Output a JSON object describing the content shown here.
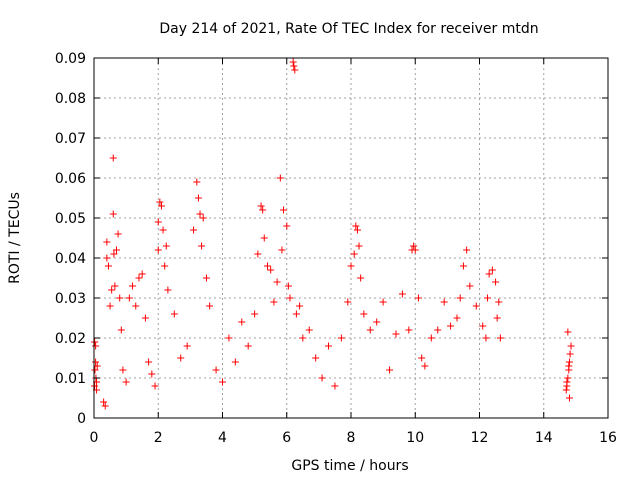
{
  "chart_data": {
    "type": "scatter",
    "title": "Day 214 of 2021, Rate Of TEC Index for receiver mtdn",
    "xlabel": "GPS time / hours",
    "ylabel": "ROTI / TECUs",
    "xlim": [
      0,
      16
    ],
    "ylim": [
      0,
      0.09
    ],
    "xticks": [
      0,
      2,
      4,
      6,
      8,
      10,
      12,
      14,
      16
    ],
    "xtick_labels": [
      "0",
      "2",
      "4",
      "6",
      "8",
      "10",
      "12",
      "14",
      "16"
    ],
    "yticks": [
      0,
      0.01,
      0.02,
      0.03,
      0.04,
      0.05,
      0.06,
      0.07,
      0.08,
      0.09
    ],
    "ytick_labels": [
      "0",
      "0.01",
      "0.02",
      "0.03",
      "0.04",
      "0.05",
      "0.06",
      "0.07",
      "0.08",
      "0.09"
    ],
    "grid": true,
    "marker": "+",
    "color": "#ff0000",
    "series": [
      {
        "name": "ROTI",
        "note": "representative subset of the dense point cloud; values read from the plot",
        "x": [
          0.02,
          0.03,
          0.05,
          0.06,
          0.08,
          0.1,
          0.02,
          0.05,
          0.08,
          0.3,
          0.35,
          0.4,
          0.4,
          0.45,
          0.5,
          0.55,
          0.6,
          0.6,
          0.62,
          0.65,
          0.7,
          0.75,
          0.8,
          0.85,
          0.9,
          1.0,
          1.1,
          1.2,
          1.3,
          1.4,
          1.5,
          1.6,
          1.7,
          1.8,
          1.9,
          2.0,
          2.0,
          2.05,
          2.1,
          2.15,
          2.2,
          2.25,
          2.3,
          2.5,
          2.7,
          2.9,
          3.1,
          3.2,
          3.25,
          3.3,
          3.35,
          3.4,
          3.5,
          3.6,
          3.8,
          4.0,
          4.2,
          4.4,
          4.6,
          4.8,
          5.0,
          5.1,
          5.2,
          5.25,
          5.3,
          5.4,
          5.5,
          5.6,
          5.7,
          5.8,
          5.85,
          5.9,
          6.0,
          6.05,
          6.1,
          6.2,
          6.22,
          6.25,
          6.3,
          6.4,
          6.5,
          6.7,
          6.9,
          7.1,
          7.3,
          7.5,
          7.7,
          7.9,
          8.0,
          8.1,
          8.15,
          8.2,
          8.25,
          8.3,
          8.4,
          8.6,
          8.8,
          9.0,
          9.2,
          9.4,
          9.6,
          9.8,
          9.9,
          9.95,
          10.0,
          10.1,
          10.2,
          10.3,
          10.5,
          10.7,
          10.9,
          11.1,
          11.3,
          11.4,
          11.5,
          11.6,
          11.7,
          11.9,
          12.1,
          12.2,
          12.25,
          12.3,
          12.4,
          12.5,
          12.55,
          12.6,
          12.65,
          14.7,
          14.72,
          14.75,
          14.78,
          14.8,
          14.82,
          14.85,
          14.75,
          14.8,
          14.72,
          14.78
        ],
        "y": [
          0.008,
          0.012,
          0.014,
          0.01,
          0.009,
          0.013,
          0.019,
          0.018,
          0.007,
          0.004,
          0.003,
          0.044,
          0.04,
          0.038,
          0.028,
          0.032,
          0.051,
          0.065,
          0.041,
          0.033,
          0.042,
          0.046,
          0.03,
          0.022,
          0.012,
          0.009,
          0.03,
          0.033,
          0.028,
          0.035,
          0.036,
          0.025,
          0.014,
          0.011,
          0.008,
          0.042,
          0.049,
          0.054,
          0.053,
          0.047,
          0.038,
          0.043,
          0.032,
          0.026,
          0.015,
          0.018,
          0.047,
          0.059,
          0.055,
          0.051,
          0.043,
          0.05,
          0.035,
          0.028,
          0.012,
          0.009,
          0.02,
          0.014,
          0.024,
          0.018,
          0.026,
          0.041,
          0.053,
          0.052,
          0.045,
          0.038,
          0.037,
          0.029,
          0.034,
          0.06,
          0.042,
          0.052,
          0.048,
          0.033,
          0.03,
          0.089,
          0.088,
          0.087,
          0.026,
          0.028,
          0.02,
          0.022,
          0.015,
          0.01,
          0.018,
          0.008,
          0.02,
          0.029,
          0.038,
          0.041,
          0.048,
          0.047,
          0.043,
          0.035,
          0.026,
          0.022,
          0.024,
          0.029,
          0.012,
          0.021,
          0.031,
          0.022,
          0.042,
          0.043,
          0.042,
          0.03,
          0.015,
          0.013,
          0.02,
          0.022,
          0.029,
          0.023,
          0.025,
          0.03,
          0.038,
          0.042,
          0.033,
          0.028,
          0.023,
          0.02,
          0.03,
          0.036,
          0.037,
          0.034,
          0.025,
          0.029,
          0.02,
          0.007,
          0.008,
          0.01,
          0.012,
          0.014,
          0.016,
          0.018,
          0.0215,
          0.005,
          0.009,
          0.013
        ]
      }
    ]
  }
}
